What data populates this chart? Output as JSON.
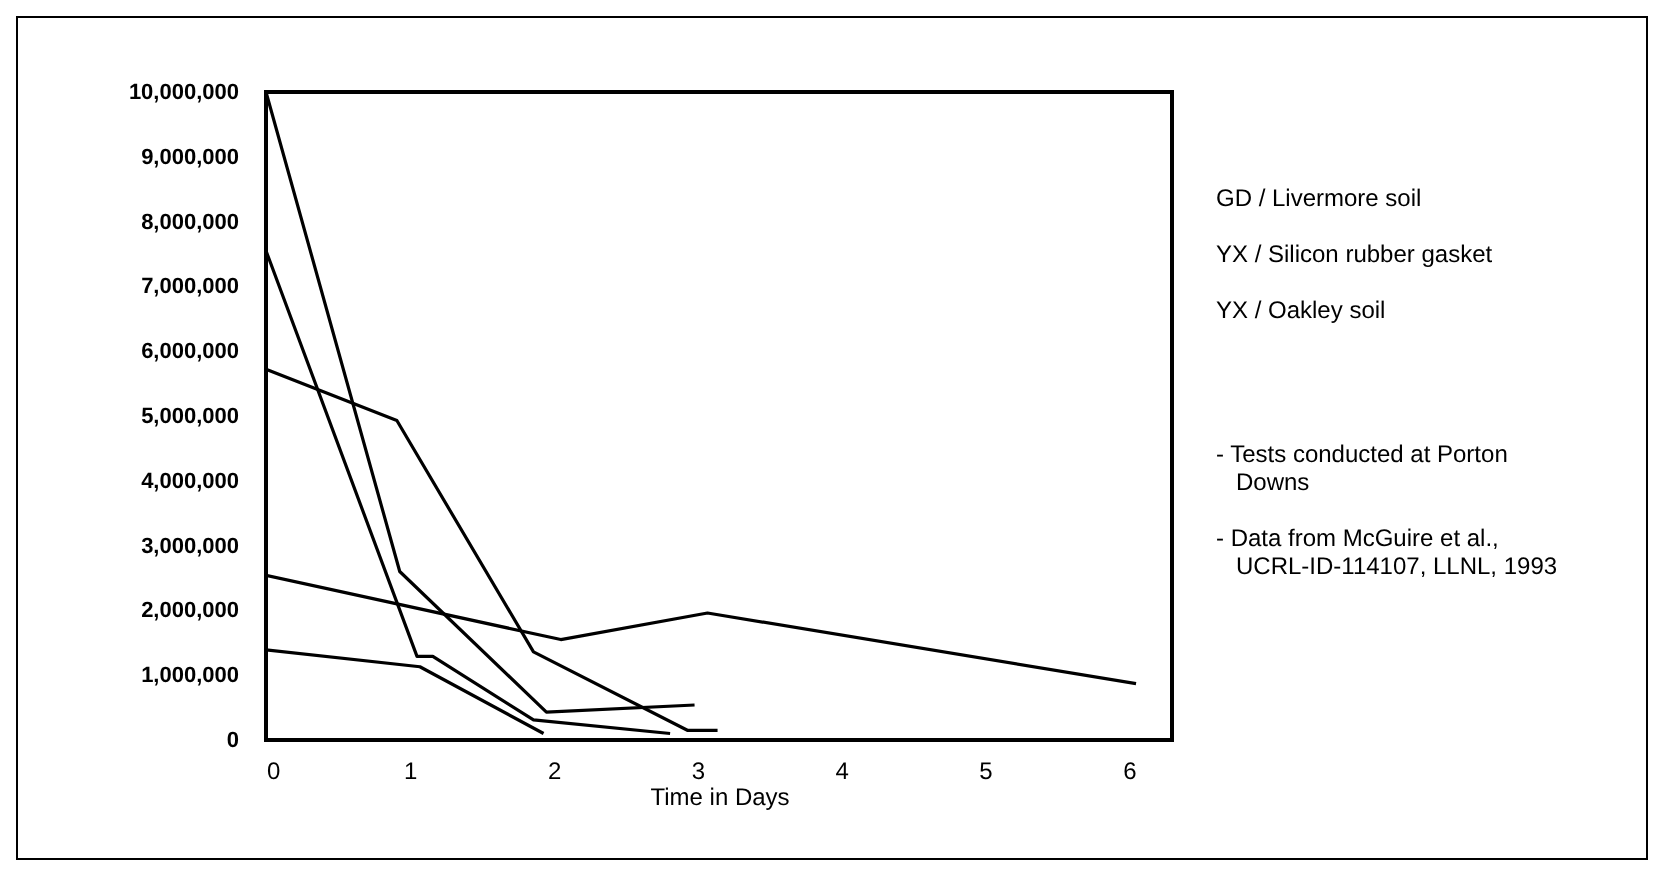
{
  "chart_data": {
    "type": "line",
    "xlabel": "Time in Days",
    "series": [
      {
        "color": "#000000",
        "x": [
          0,
          0.93,
          1.95,
          2.98
        ],
        "values": [
          10000000,
          2600000,
          430000,
          540000
        ]
      },
      {
        "color": "#000000",
        "x": [
          0,
          1.05,
          1.16,
          1.86,
          2.81
        ],
        "values": [
          7550000,
          1290000,
          1290000,
          310000,
          100000
        ]
      },
      {
        "color": "#000000",
        "x": [
          0,
          0.91,
          1.86,
          2.93,
          3.14
        ],
        "values": [
          5720000,
          4930000,
          1360000,
          150000,
          150000
        ]
      },
      {
        "color": "#000000",
        "x": [
          0,
          2.05,
          3.07,
          6.05
        ],
        "values": [
          2540000,
          1550000,
          1960000,
          870000
        ]
      },
      {
        "color": "#000000",
        "x": [
          0,
          1.07,
          1.93
        ],
        "values": [
          1390000,
          1130000,
          100000
        ]
      }
    ],
    "xlim": [
      0,
      6.3
    ],
    "xticks": [
      0,
      1,
      2,
      3,
      4,
      5,
      6
    ],
    "ylim": [
      0,
      10000000
    ],
    "yticks": [
      {
        "value": 0,
        "label": "0"
      },
      {
        "value": 1000000,
        "label": "1,000,000"
      },
      {
        "value": 2000000,
        "label": "2,000,000"
      },
      {
        "value": 3000000,
        "label": "3,000,000"
      },
      {
        "value": 4000000,
        "label": "4,000,000"
      },
      {
        "value": 5000000,
        "label": "5,000,000"
      },
      {
        "value": 6000000,
        "label": "6,000,000"
      },
      {
        "value": 7000000,
        "label": "7,000,000"
      },
      {
        "value": 8000000,
        "label": "8,000,000"
      },
      {
        "value": 9000000,
        "label": "9,000,000"
      },
      {
        "value": 10000000,
        "label": "10,000,000"
      }
    ],
    "grid": false,
    "marker": "none",
    "annotations": [
      "GD / Livermore soil",
      "YX / Silicon rubber gasket",
      "YX / Oakley soil",
      "- Tests conducted at Porton Downs",
      "- Data from McGuire et al., UCRL-ID-114107, LLNL, 1993"
    ]
  }
}
